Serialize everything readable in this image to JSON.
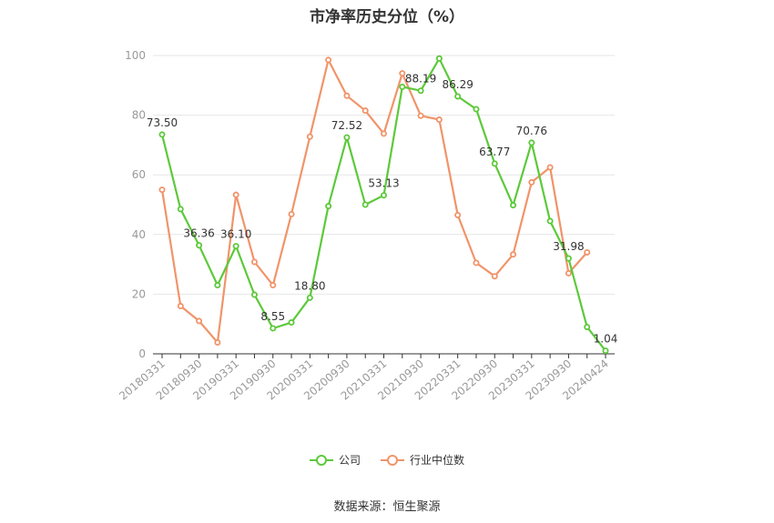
{
  "chart_data": {
    "type": "line",
    "title": "市净率历史分位（%）",
    "ylim": [
      0,
      100
    ],
    "yticks": [
      0,
      20,
      40,
      60,
      80,
      100
    ],
    "grid": true,
    "legend_position": "bottom-center",
    "x_tick_labels": [
      "20180331",
      "20180930",
      "20190331",
      "20190930",
      "20200331",
      "20200930",
      "20210331",
      "20210930",
      "20220331",
      "20220930",
      "20230331",
      "20230930",
      "20240424"
    ],
    "x": [
      "20180331",
      "20180630",
      "20180930",
      "20181231",
      "20190331",
      "20190630",
      "20190930",
      "20191231",
      "20200331",
      "20200630",
      "20200930",
      "20201231",
      "20210331",
      "20210630",
      "20210930",
      "20211231",
      "20220331",
      "20220630",
      "20220930",
      "20221231",
      "20230331",
      "20230630",
      "20230930",
      "20231231",
      "20240424"
    ],
    "series": [
      {
        "name": "公司",
        "color": "#5cc93a",
        "values": [
          73.5,
          48.5,
          36.36,
          23.0,
          36.1,
          19.8,
          8.55,
          10.5,
          18.8,
          49.5,
          72.52,
          50.0,
          53.13,
          89.5,
          88.19,
          99.0,
          86.29,
          82.0,
          63.77,
          49.8,
          70.76,
          44.5,
          31.98,
          9.0,
          1.04
        ],
        "labels": {
          "0": "73.50",
          "2": "36.36",
          "4": "36.10",
          "6": "8.55",
          "8": "18.80",
          "10": "72.52",
          "12": "53.13",
          "14": "88.19",
          "16": "86.29",
          "18": "63.77",
          "20": "70.76",
          "22": "31.98",
          "24": "1.04"
        }
      },
      {
        "name": "行业中位数",
        "color": "#f0946a",
        "values": [
          55.0,
          16.0,
          11.0,
          3.8,
          53.3,
          30.8,
          23.0,
          46.8,
          72.8,
          98.5,
          86.5,
          81.5,
          73.8,
          94.0,
          79.8,
          78.5,
          46.5,
          30.5,
          26.0,
          33.3,
          57.5,
          62.5,
          27.0,
          34.0,
          null
        ],
        "labels": {}
      }
    ]
  },
  "footer": {
    "source": "数据来源：恒生聚源"
  }
}
